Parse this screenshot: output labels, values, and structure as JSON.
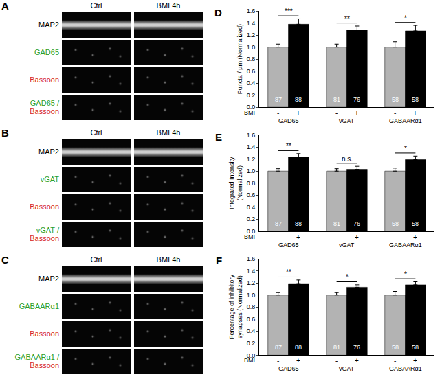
{
  "image_panels": [
    {
      "label": "A",
      "columns": [
        "Ctrl",
        "BMI 4h"
      ],
      "rows": [
        "MAP2",
        "GAD65",
        "Bassoon",
        [
          "GAD65 /",
          "Bassoon"
        ]
      ],
      "row_colors": [
        "#000000",
        "#2ca02c",
        "#d62728",
        [
          "#2ca02c",
          "#d62728"
        ]
      ]
    },
    {
      "label": "B",
      "columns": [
        "Ctrl",
        "BMI 4h"
      ],
      "rows": [
        "MAP2",
        "vGAT",
        "Bassoon",
        [
          "vGAT /",
          "Bassoon"
        ]
      ],
      "row_colors": [
        "#000000",
        "#2ca02c",
        "#d62728",
        [
          "#2ca02c",
          "#d62728"
        ]
      ]
    },
    {
      "label": "C",
      "columns": [
        "Ctrl",
        "BMI 4h"
      ],
      "rows": [
        "MAP2",
        "GABAARα1",
        "Bassoon",
        [
          "GABAARα1 /",
          "Bassoon"
        ]
      ],
      "row_colors": [
        "#000000",
        "#2ca02c",
        "#d62728",
        [
          "#2ca02c",
          "#d62728"
        ]
      ]
    }
  ],
  "chart_data": [
    {
      "type": "bar",
      "title": "D",
      "y_label": "Puncta / µm (Normalized)",
      "x_label": "BMI",
      "categories": [
        "GAD65",
        "vGAT",
        "GABAARα1"
      ],
      "series": [
        {
          "name": "-",
          "color": "#b3b3b3",
          "values": [
            1.0,
            1.0,
            1.0
          ],
          "errors": [
            0.05,
            0.05,
            0.09
          ],
          "n": [
            87,
            81,
            58
          ]
        },
        {
          "name": "+",
          "color": "#000000",
          "values": [
            1.38,
            1.28,
            1.27
          ],
          "errors": [
            0.09,
            0.07,
            0.09
          ],
          "n": [
            88,
            76,
            58
          ]
        }
      ],
      "significance": [
        "***",
        "**",
        "*"
      ],
      "ylim": [
        0,
        1.6
      ],
      "yticks": [
        {
          "value": 0,
          "label": "0.0"
        },
        0.2,
        0.4,
        0.6,
        0.8,
        {
          "value": 1,
          "label": "1.0"
        },
        1.2,
        1.4,
        1.6
      ]
    },
    {
      "type": "bar",
      "title": "E",
      "y_label": "Integrated Intensity\n(Normalized)",
      "x_label": "BMI",
      "categories": [
        "GAD65",
        "vGAT",
        "GABAARα1"
      ],
      "series": [
        {
          "name": "-",
          "color": "#b3b3b3",
          "values": [
            1.0,
            1.0,
            1.0
          ],
          "errors": [
            0.04,
            0.04,
            0.05
          ],
          "n": [
            87,
            81,
            58
          ]
        },
        {
          "name": "+",
          "color": "#000000",
          "values": [
            1.23,
            1.03,
            1.19
          ],
          "errors": [
            0.06,
            0.05,
            0.06
          ],
          "n": [
            88,
            76,
            58
          ]
        }
      ],
      "significance": [
        "**",
        "n.s.",
        "*"
      ],
      "ylim": [
        0,
        1.6
      ],
      "yticks": [
        {
          "value": 0,
          "label": "0.0"
        },
        0.2,
        0.4,
        0.6,
        0.8,
        {
          "value": 1,
          "label": "1.0"
        },
        1.2,
        1.4,
        1.6
      ]
    },
    {
      "type": "bar",
      "title": "F",
      "y_label": "Percentage of inhibitory\nsynapses (Normalized)",
      "x_label": "BMI",
      "categories": [
        "GAD65",
        "vGAT",
        "GABAARα1"
      ],
      "series": [
        {
          "name": "-",
          "color": "#b3b3b3",
          "values": [
            1.0,
            1.0,
            1.0
          ],
          "errors": [
            0.04,
            0.04,
            0.06
          ],
          "n": [
            87,
            81,
            58
          ]
        },
        {
          "name": "+",
          "color": "#000000",
          "values": [
            1.19,
            1.13,
            1.17
          ],
          "errors": [
            0.06,
            0.04,
            0.05
          ],
          "n": [
            88,
            76,
            58
          ]
        }
      ],
      "significance": [
        "**",
        "*",
        "*"
      ],
      "ylim": [
        0,
        1.6
      ],
      "yticks": [
        {
          "value": 0,
          "label": "0.0"
        },
        0.2,
        0.4,
        0.6,
        0.8,
        {
          "value": 1,
          "label": "1.0"
        },
        1.2,
        1.4,
        1.6
      ]
    }
  ]
}
